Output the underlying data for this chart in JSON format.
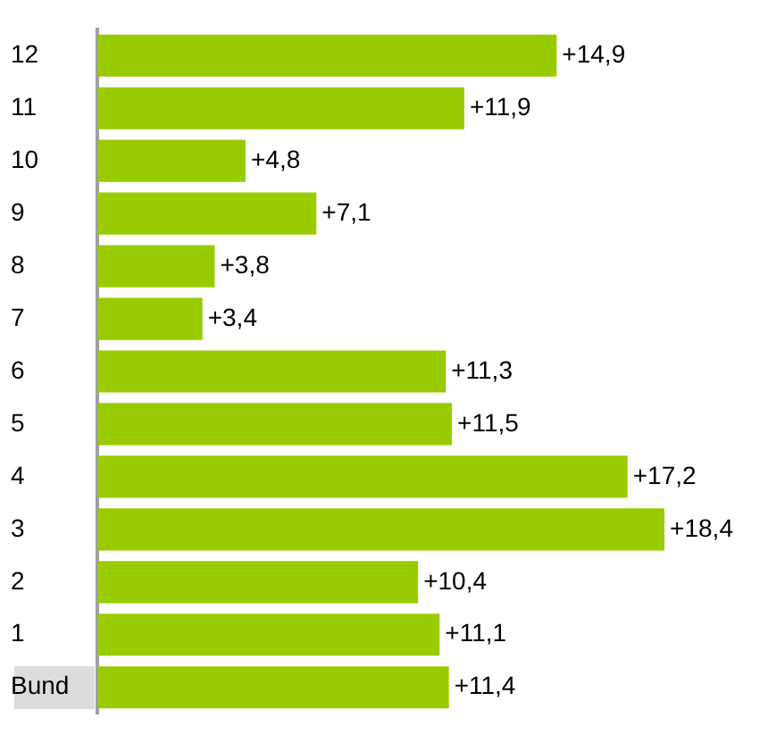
{
  "chart_data": {
    "type": "bar",
    "orientation": "horizontal",
    "categories": [
      "12",
      "11",
      "10",
      "9",
      "8",
      "7",
      "6",
      "5",
      "4",
      "3",
      "2",
      "1",
      "Bund"
    ],
    "values": [
      14.9,
      11.9,
      4.8,
      7.1,
      3.8,
      3.4,
      11.3,
      11.5,
      17.2,
      18.4,
      10.4,
      11.1,
      11.4
    ],
    "value_labels": [
      "+14,9",
      "+11,9",
      "+4,8",
      "+7,1",
      "+3,8",
      "+3,4",
      "+11,3",
      "+11,5",
      "+17,2",
      "+18,4",
      "+10,4",
      "+11,1",
      "+11,4"
    ],
    "color": "#99cc00",
    "tick_labels": "y"
  }
}
